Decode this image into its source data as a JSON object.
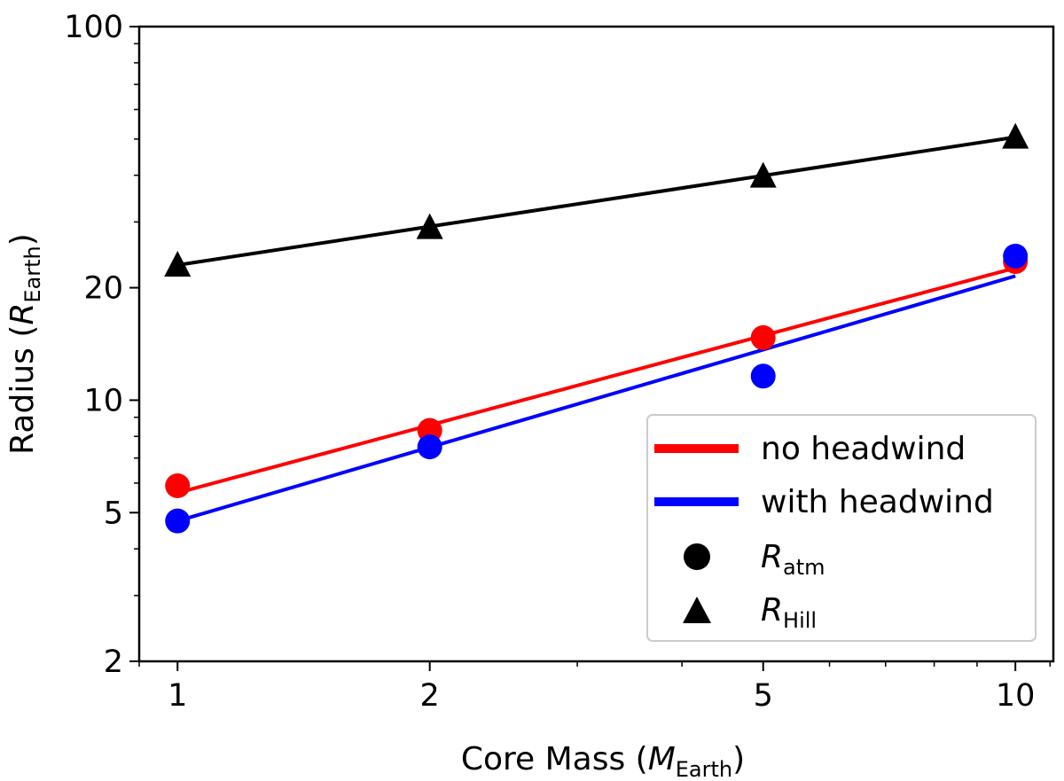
{
  "chart_data": {
    "type": "scatter",
    "xscale": "log",
    "yscale": "log",
    "xlim": [
      0.9,
      11.1
    ],
    "ylim": [
      2,
      100
    ],
    "xticks": [
      1,
      2,
      5,
      10
    ],
    "xtick_labels": [
      "1",
      "2",
      "5",
      "10"
    ],
    "yticks": [
      2,
      5,
      10,
      20,
      100
    ],
    "ytick_labels": [
      "2",
      "5",
      "10",
      "20",
      "100"
    ],
    "xlabel": {
      "prefix": "Core Mass (",
      "var": "M",
      "sub": "Earth",
      "suffix": ")"
    },
    "ylabel": {
      "prefix": "Radius (",
      "var": "R",
      "sub": "Earth",
      "suffix": ")"
    },
    "series": [
      {
        "name": "no headwind",
        "kind": "R_atm",
        "marker": "circle",
        "color": "#ff0000",
        "x": [
          1,
          2,
          5,
          10
        ],
        "values": [
          5.9,
          8.3,
          14.7,
          23.5
        ],
        "fit": {
          "x": [
            1,
            10
          ],
          "y": [
            5.65,
            22.6
          ]
        }
      },
      {
        "name": "with headwind",
        "kind": "R_atm",
        "marker": "circle",
        "color": "#0000ff",
        "x": [
          1,
          2,
          5,
          10
        ],
        "values": [
          4.75,
          7.5,
          11.6,
          24.3
        ],
        "fit": {
          "x": [
            1,
            10
          ],
          "y": [
            4.75,
            21.5
          ]
        }
      },
      {
        "name": "R_Hill",
        "kind": "R_Hill",
        "marker": "triangle",
        "color": "#000000",
        "x": [
          1,
          2,
          5,
          10
        ],
        "values": [
          23.0,
          29.0,
          39.8,
          50.6
        ],
        "fit": {
          "x": [
            1,
            10
          ],
          "y": [
            23.0,
            50.6
          ]
        }
      }
    ],
    "legend": {
      "position": "lower-right",
      "entries": [
        {
          "label": "no headwind",
          "kind": "line",
          "color": "#ff0000"
        },
        {
          "label": "with headwind",
          "kind": "line",
          "color": "#0000ff"
        },
        {
          "var": "R",
          "sub": "atm",
          "kind": "circle",
          "color": "#000000"
        },
        {
          "var": "R",
          "sub": "Hill",
          "kind": "triangle",
          "color": "#000000"
        }
      ]
    }
  }
}
